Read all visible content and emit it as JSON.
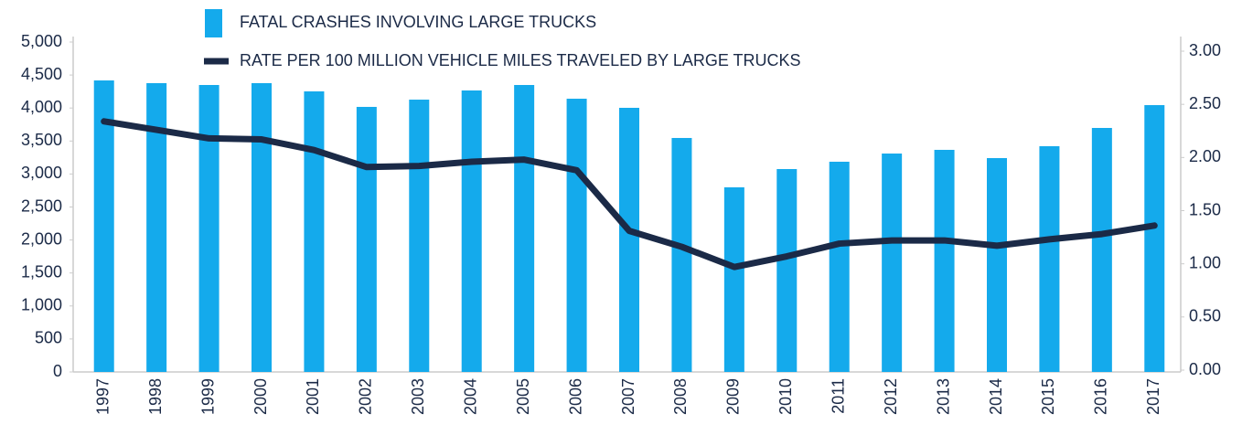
{
  "chart_data": {
    "type": "bar-line",
    "categories": [
      "1997",
      "1998",
      "1999",
      "2000",
      "2001",
      "2002",
      "2003",
      "2004",
      "2005",
      "2006",
      "2007",
      "2008",
      "2009",
      "2010",
      "2011",
      "2012",
      "2013",
      "2014",
      "2015",
      "2016",
      "2017"
    ],
    "series": [
      {
        "name": "FATAL CRASHES INVOLVING LARGE TRUCKS",
        "type": "bar",
        "color": "#14aaec",
        "values": [
          4418,
          4377,
          4349,
          4377,
          4252,
          4017,
          4127,
          4266,
          4349,
          4141,
          4003,
          3546,
          2798,
          3075,
          3186,
          3310,
          3366,
          3241,
          3421,
          3698,
          4044
        ]
      },
      {
        "name": "RATE PER 100 MILLION VEHICLE MILES TRAVELED BY LARGE TRUCKS",
        "type": "line",
        "color": "#1b2a47",
        "axis": "y2",
        "values": [
          2.34,
          2.26,
          2.18,
          2.17,
          2.07,
          1.91,
          1.92,
          1.96,
          1.98,
          1.88,
          1.31,
          1.16,
          0.97,
          1.07,
          1.19,
          1.22,
          1.22,
          1.17,
          1.23,
          1.28,
          1.36
        ]
      }
    ],
    "ylim": [
      0,
      5000
    ],
    "yticks": [
      0,
      500,
      {
        "value": 1000,
        "label": "1,000"
      },
      {
        "value": 1500,
        "label": "1,500"
      },
      {
        "value": 2000,
        "label": "2,000"
      },
      {
        "value": 2500,
        "label": "2,500"
      },
      {
        "value": 3000,
        "label": "3,000"
      },
      {
        "value": 3500,
        "label": "3,500"
      },
      {
        "value": 4000,
        "label": "4,000"
      },
      {
        "value": 4500,
        "label": "4,500"
      },
      {
        "value": 5000,
        "label": "5,000"
      }
    ],
    "y2lim": [
      0,
      3
    ],
    "y2ticks": [
      {
        "value": 0,
        "label": "0.00"
      },
      {
        "value": 0.5,
        "label": "0.50"
      },
      {
        "value": 1,
        "label": "1.00"
      },
      {
        "value": 1.5,
        "label": "1.50"
      },
      {
        "value": 2,
        "label": "2.00"
      },
      {
        "value": 2.5,
        "label": "2.50"
      },
      {
        "value": 3,
        "label": "3.00"
      }
    ]
  }
}
